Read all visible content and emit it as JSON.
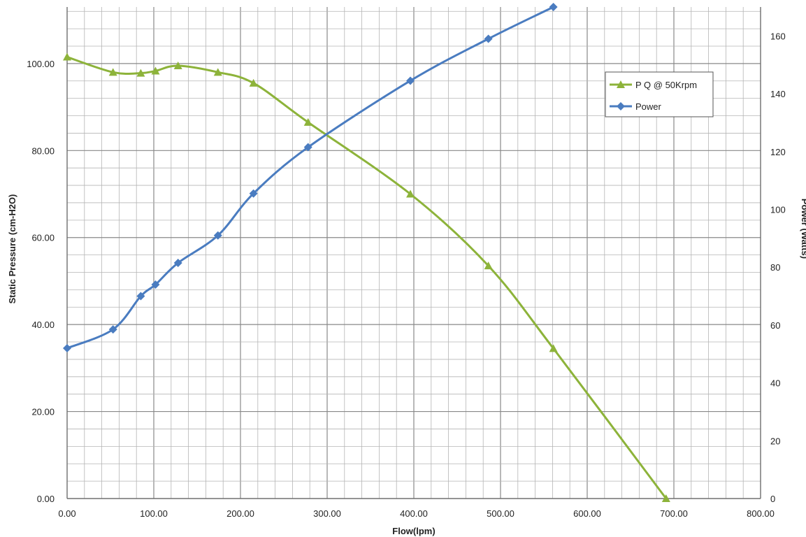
{
  "chart_data": {
    "type": "line",
    "xlabel": "Flow(lpm)",
    "ylabel": "Static Pressure (cm-H2O)",
    "y2label": "Power (Watts)",
    "xlim": [
      0,
      800
    ],
    "ylim": [
      0,
      113
    ],
    "y2lim": [
      0,
      170
    ],
    "x_ticks": [
      "0.00",
      "100.00",
      "200.00",
      "300.00",
      "400.00",
      "500.00",
      "600.00",
      "700.00",
      "800.00"
    ],
    "y_ticks": [
      "0.00",
      "20.00",
      "40.00",
      "60.00",
      "80.00",
      "100.00"
    ],
    "y2_ticks": [
      "0",
      "20",
      "40",
      "60",
      "80",
      "100",
      "120",
      "140",
      "160"
    ],
    "grid": true,
    "legend_position": "top-right",
    "series": [
      {
        "name": "P Q @ 50Krpm",
        "axis": "left",
        "color": "#8db33a",
        "marker": "triangle",
        "x": [
          0,
          53,
          85,
          102,
          128,
          174,
          215,
          278,
          396,
          486,
          561,
          691
        ],
        "y": [
          101.5,
          98,
          97.8,
          98.3,
          99.5,
          98,
          95.5,
          86.5,
          70,
          53.5,
          34.5,
          0
        ]
      },
      {
        "name": "Power",
        "axis": "right",
        "color": "#4a7cc0",
        "marker": "diamond",
        "x": [
          0,
          53,
          85,
          102,
          128,
          174,
          215,
          278,
          396,
          486,
          561
        ],
        "y": [
          52,
          58.5,
          70,
          74,
          81.5,
          91,
          105.5,
          121.5,
          144.5,
          159,
          170
        ]
      }
    ]
  }
}
